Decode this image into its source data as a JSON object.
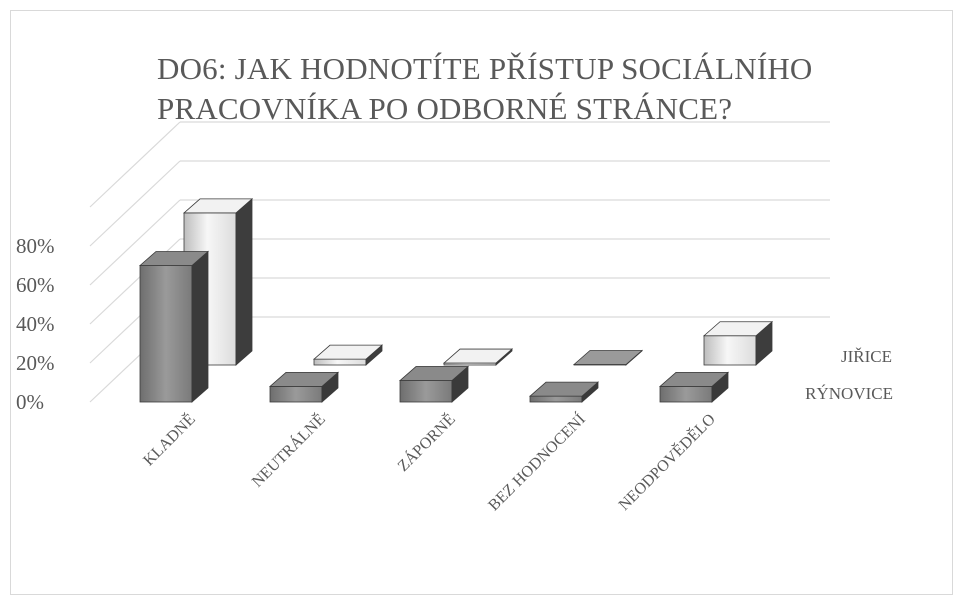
{
  "chart_data": {
    "type": "bar",
    "title": "DO6: JAK HODNOTÍTE PŘÍSTUP SOCIÁLNÍHO PRACOVNÍKA PO ODBORNÉ STRÁNCE?",
    "title_lines": [
      "DO6: JAK HODNOTÍTE PŘÍSTUP SOCIÁLNÍHO",
      "PRACOVNÍKA PO ODBORNÉ STRÁNCE?"
    ],
    "categories": [
      "KLADNĚ",
      "NEUTRÁLNĚ",
      "ZÁPORNĚ",
      "BEZ HODNOCENÍ",
      "NEODPOVĚDĚLO"
    ],
    "series": [
      {
        "name": "RÝNOVICE",
        "values": [
          70,
          8,
          11,
          3,
          8
        ],
        "color": "#7f7f7f"
      },
      {
        "name": "JIŘICE",
        "values": [
          78,
          3,
          1,
          0,
          15
        ],
        "color": "#e0e0e0"
      }
    ],
    "yticks": [
      "0%",
      "20%",
      "40%",
      "60%",
      "80%"
    ],
    "ylim": [
      0,
      100
    ],
    "three_d": true,
    "grid": true
  }
}
